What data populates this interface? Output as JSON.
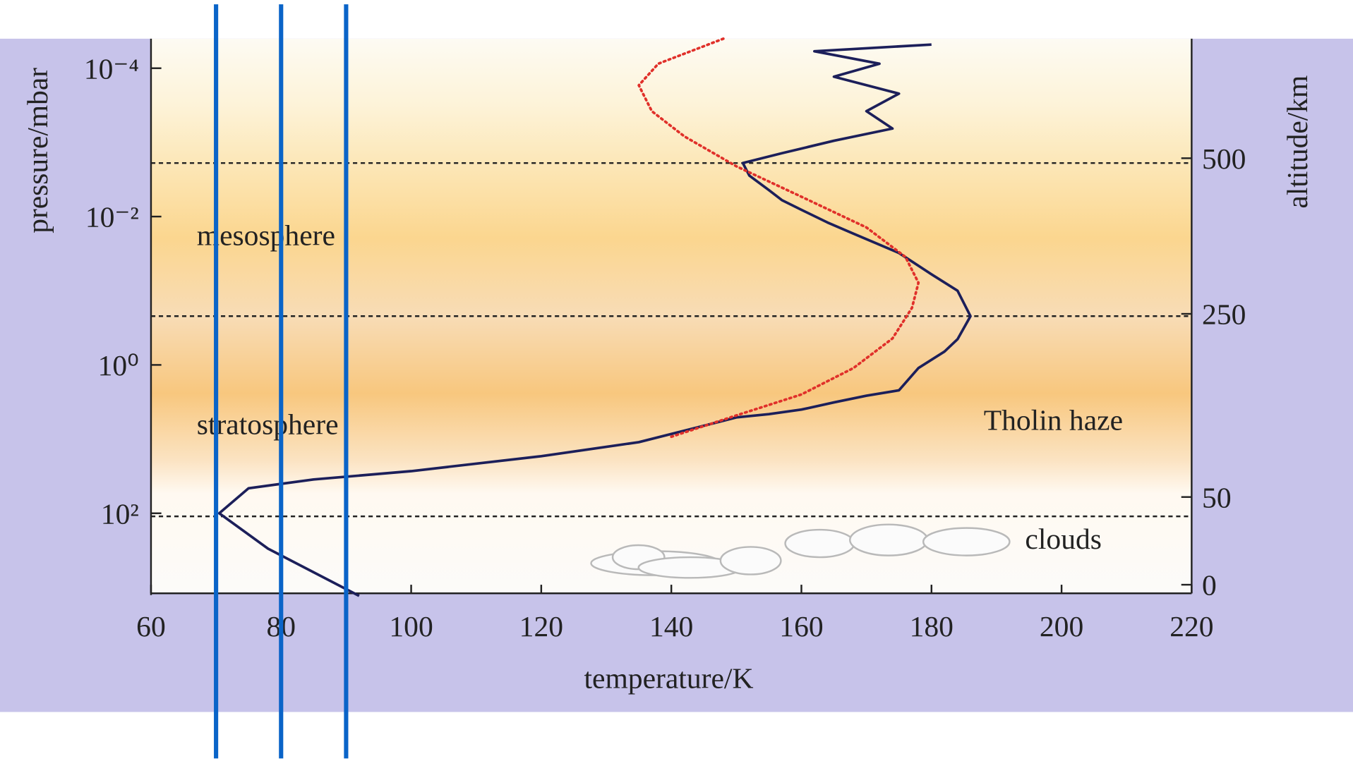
{
  "chart_data": {
    "type": "line",
    "xlabel": "temperature/K",
    "ylabel": "pressure/mbar",
    "y2label": "altitude/km",
    "xlim": [
      60,
      220
    ],
    "xticks": [
      60,
      80,
      100,
      120,
      140,
      160,
      180,
      200,
      220
    ],
    "ylim": [
      4e-05,
      1200
    ],
    "ylog": true,
    "yticks": [
      {
        "value": 0.0001,
        "label": "10⁻⁴"
      },
      {
        "value": 0.01,
        "label": "10⁻²"
      },
      {
        "value": 1,
        "label": "10⁰"
      },
      {
        "value": 100,
        "label": "10²"
      }
    ],
    "y2ticks": [
      0,
      50,
      250,
      500
    ],
    "grid": false,
    "series": [
      {
        "color": "#1c1f5a",
        "style": "solid",
        "x": [
          92,
          78,
          70.5,
          75,
          85,
          100,
          120,
          135,
          145,
          150,
          155,
          160,
          165,
          170,
          175,
          178,
          182,
          184,
          186,
          184,
          180,
          175,
          168,
          164,
          160,
          157,
          155,
          152,
          151,
          157,
          165,
          174,
          170,
          175,
          165,
          172,
          162,
          180
        ],
        "values": [
          1300,
          300,
          100,
          46,
          35,
          27,
          17,
          11,
          6.6,
          5.1,
          4.6,
          4,
          3.2,
          2.6,
          2.2,
          1.1,
          0.66,
          0.45,
          0.22,
          0.1,
          0.06,
          0.031,
          0.017,
          0.012,
          0.0081,
          0.006,
          0.0044,
          0.0028,
          0.0019,
          0.0014,
          0.00095,
          0.00065,
          0.00038,
          0.00022,
          0.00013,
          8.7e-05,
          5.9e-05,
          4.8e-05
        ]
      },
      {
        "color": "#e0302a",
        "style": "dotted",
        "x": [
          140,
          150,
          160,
          168,
          174,
          177,
          178,
          176,
          170,
          160,
          150,
          142,
          137,
          135,
          138,
          148
        ],
        "values": [
          9.3,
          4.8,
          2.5,
          1.1,
          0.44,
          0.17,
          0.078,
          0.035,
          0.014,
          0.0054,
          0.0021,
          0.00083,
          0.00038,
          0.00017,
          8.7e-05,
          4e-05
        ]
      }
    ],
    "hlines": [
      0.0019,
      0.22,
      110
    ],
    "vlines": [
      70,
      80,
      90
    ],
    "vline_color": "#0a64c8",
    "annotations": [
      "mesosphere",
      "stratosphere",
      "Tholin haze",
      "clouds"
    ]
  }
}
